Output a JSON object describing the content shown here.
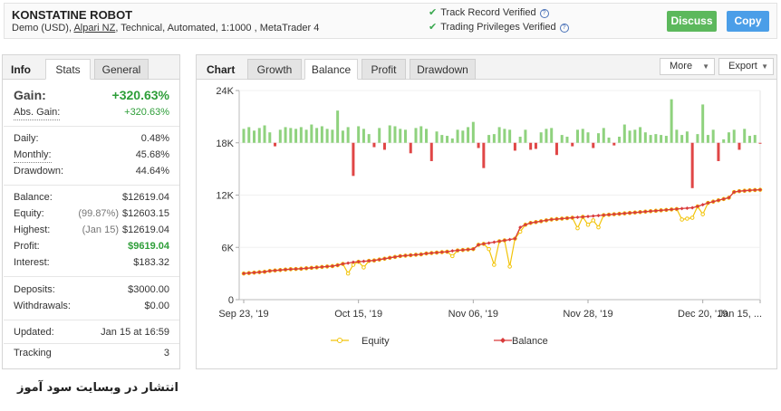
{
  "header": {
    "robot_name": "KONSTATINE ROBOT",
    "meta_prefix": "Demo (USD), ",
    "meta_broker": "Alpari NZ",
    "meta_suffix": ", Technical, Automated, 1:1000 , MetaTrader 4",
    "verified_1": "Track Record Verified",
    "verified_2": "Trading Privileges Verified",
    "help_glyph": "?",
    "discuss_label": "Discuss",
    "copy_label": "Copy"
  },
  "left_tabs": {
    "title": "Info",
    "stats": "Stats",
    "general": "General"
  },
  "stats": {
    "gain_label": "Gain:",
    "gain_value": "+320.63%",
    "abs_gain_label": "Abs. Gain:",
    "abs_gain_value": "+320.63%",
    "daily_label": "Daily:",
    "daily_value": "0.48%",
    "monthly_label": "Monthly:",
    "monthly_value": "45.68%",
    "drawdown_label": "Drawdown:",
    "drawdown_value": "44.64%",
    "balance_label": "Balance:",
    "balance_value": "$12619.04",
    "equity_label": "Equity:",
    "equity_sub": "(99.87%)",
    "equity_value": "$12603.15",
    "highest_label": "Highest:",
    "highest_sub": "(Jan 15)",
    "highest_value": "$12619.04",
    "profit_label": "Profit:",
    "profit_value": "$9619.04",
    "interest_label": "Interest:",
    "interest_value": "$183.32",
    "deposits_label": "Deposits:",
    "deposits_value": "$3000.00",
    "withdrawals_label": "Withdrawals:",
    "withdrawals_value": "$0.00",
    "updated_label": "Updated:",
    "updated_value": "Jan 15 at 16:59",
    "tracking_label": "Tracking",
    "tracking_value": "3"
  },
  "chart_tabs": {
    "title": "Chart",
    "growth": "Growth",
    "balance": "Balance",
    "profit": "Profit",
    "drawdown": "Drawdown",
    "more": "More",
    "export": "Export",
    "arrow_glyph": "▼"
  },
  "colors": {
    "equity": "#f2c40a",
    "balance": "#d93a3a",
    "bar_pos": "#8fd27e",
    "bar_neg": "#e04646",
    "discuss": "#5cb85c",
    "copy": "#4b9ee8",
    "green_text": "#2e9e39"
  },
  "chart_data": {
    "type": "line",
    "title": "Balance",
    "y_ticks": [
      "0",
      "6K",
      "12K",
      "18K",
      "24K"
    ],
    "ylim": [
      0,
      24000
    ],
    "x_ticks": [
      "Sep 23, '19",
      "Oct 15, '19",
      "Nov 06, '19",
      "Nov 28, '19",
      "Dec 20, '19",
      "Jan 15, ..."
    ],
    "legend": [
      "Equity",
      "Balance"
    ],
    "balance": [
      3000,
      3050,
      3100,
      3150,
      3200,
      3300,
      3350,
      3400,
      3450,
      3500,
      3520,
      3550,
      3600,
      3650,
      3700,
      3750,
      3800,
      3850,
      3950,
      4100,
      4200,
      4300,
      4350,
      4400,
      4450,
      4500,
      4600,
      4700,
      4800,
      4900,
      5000,
      5050,
      5100,
      5150,
      5200,
      5300,
      5350,
      5400,
      5450,
      5500,
      5600,
      5650,
      5700,
      5750,
      5800,
      6300,
      6400,
      6500,
      6600,
      6700,
      6800,
      6900,
      7000,
      8300,
      8600,
      8800,
      8900,
      9000,
      9100,
      9200,
      9250,
      9300,
      9350,
      9400,
      9450,
      9500,
      9550,
      9600,
      9650,
      9700,
      9750,
      9800,
      9850,
      9900,
      9950,
      10000,
      10050,
      10100,
      10150,
      10200,
      10250,
      10300,
      10350,
      10400,
      10450,
      10500,
      10550,
      10700,
      10900,
      11100,
      11250,
      11400,
      11550,
      11700,
      12350,
      12450,
      12500,
      12550,
      12580,
      12610
    ],
    "equity": [
      3000,
      3050,
      3100,
      3150,
      3200,
      3300,
      3350,
      3400,
      3450,
      3500,
      3520,
      3550,
      3600,
      3650,
      3700,
      3750,
      3800,
      3850,
      3950,
      4100,
      3000,
      4000,
      4350,
      3700,
      4450,
      4500,
      4600,
      4700,
      4800,
      4900,
      5000,
      5050,
      5100,
      5150,
      5200,
      5300,
      5350,
      5400,
      5450,
      5500,
      5000,
      5650,
      5700,
      5750,
      5800,
      6300,
      6400,
      5800,
      4000,
      6700,
      6800,
      3800,
      7000,
      7800,
      8600,
      8800,
      8900,
      9000,
      9100,
      9200,
      9250,
      9300,
      9350,
      9400,
      8200,
      9500,
      8600,
      9100,
      8300,
      9700,
      9750,
      9800,
      9850,
      9900,
      9950,
      10000,
      10050,
      10100,
      10150,
      10200,
      10250,
      10300,
      10350,
      10400,
      9200,
      9300,
      9400,
      10700,
      9800,
      11100,
      11250,
      11400,
      11550,
      11700,
      12350,
      12450,
      12500,
      12550,
      12580,
      12610
    ],
    "bars": [
      1600,
      1800,
      1400,
      1700,
      2000,
      1200,
      -400,
      1500,
      1800,
      1700,
      1600,
      1800,
      1500,
      2100,
      1700,
      1900,
      1600,
      1500,
      3700,
      1400,
      1800,
      -3800,
      1900,
      1600,
      1000,
      -500,
      1700,
      -800,
      2000,
      1900,
      1600,
      1500,
      -1200,
      1700,
      1900,
      1600,
      -2100,
      1300,
      900,
      800,
      500,
      1500,
      1400,
      1800,
      2400,
      -600,
      -2900,
      900,
      1000,
      1800,
      1600,
      1500,
      -900,
      700,
      1500,
      -800,
      -700,
      1200,
      1600,
      1700,
      -1400,
      900,
      700,
      -400,
      1500,
      1600,
      1200,
      -600,
      1100,
      1700,
      600,
      -300,
      700,
      2100,
      1400,
      1500,
      1800,
      1200,
      900,
      1000,
      900,
      800,
      5000,
      1500,
      900,
      1300,
      -5200,
      1000,
      4400,
      900,
      1500,
      -2100,
      400,
      1200,
      1500,
      -800,
      1600,
      800,
      900,
      -100
    ],
    "bars_baseline": 18000,
    "bars_scale_per_unit": 1
  },
  "footer_text": "انتشار در وبسایت سود آموز"
}
